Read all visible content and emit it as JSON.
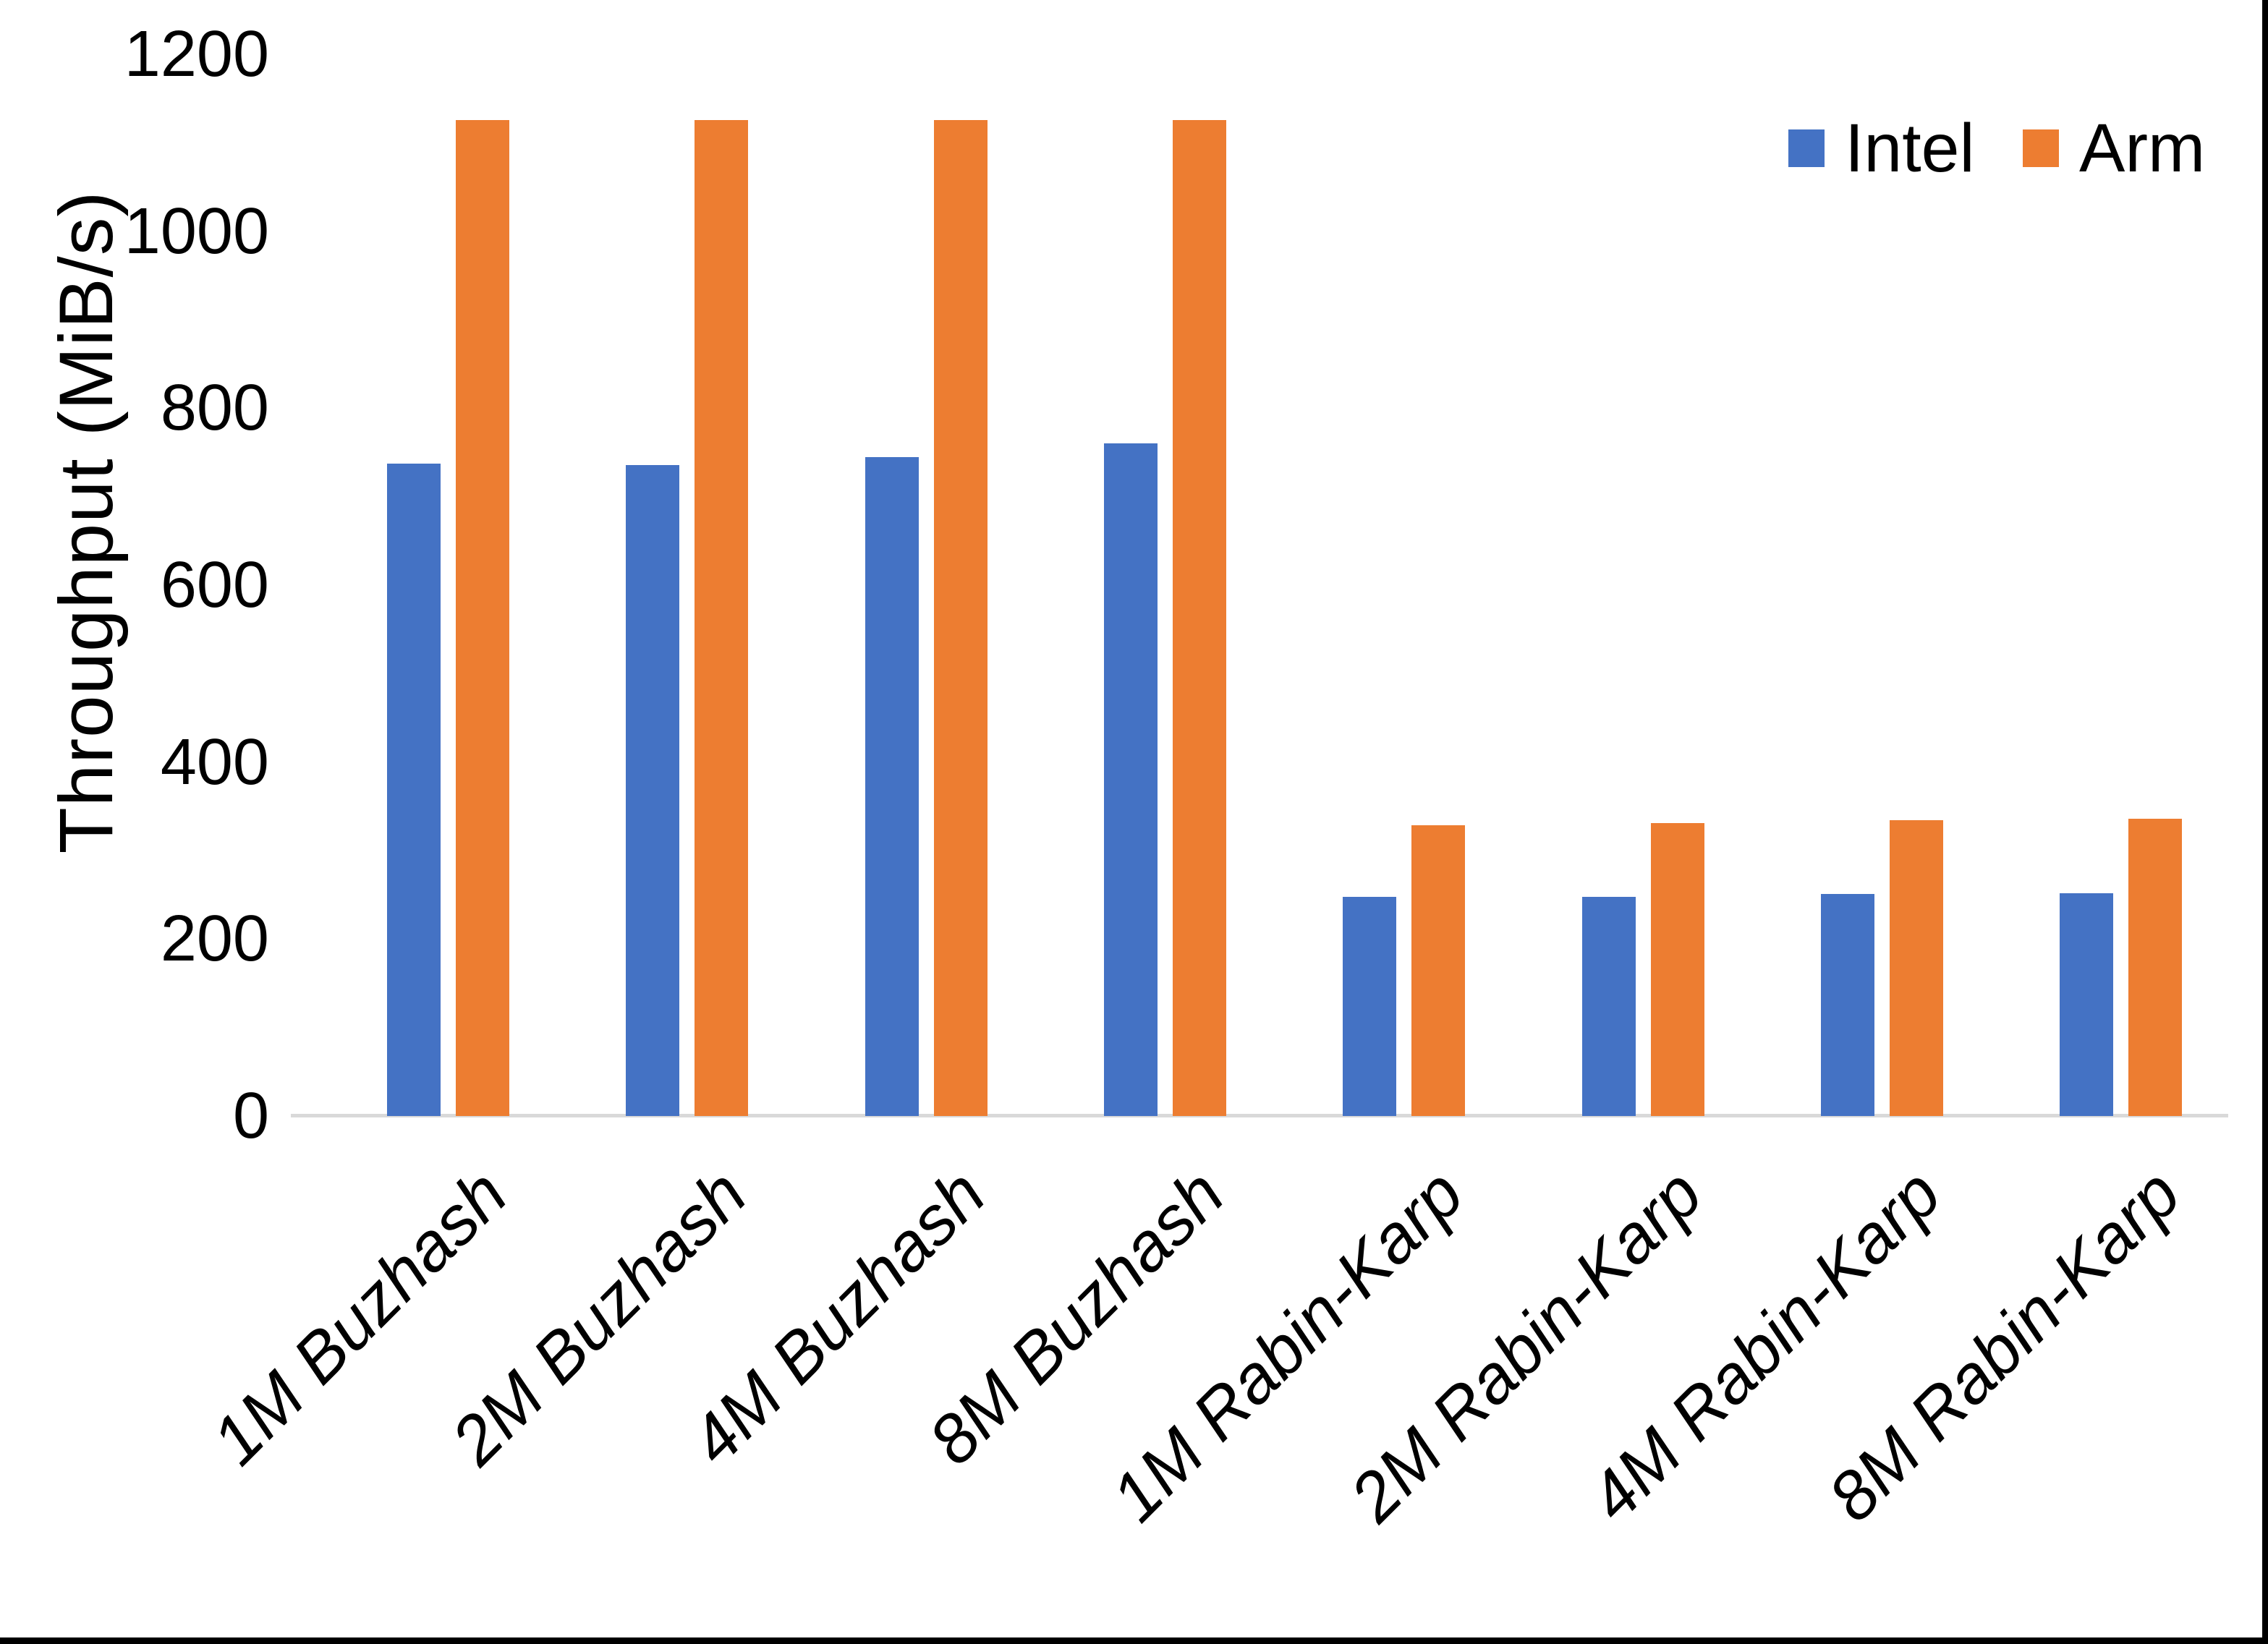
{
  "chart_data": {
    "type": "bar",
    "title": "",
    "xlabel": "",
    "ylabel": "Throughput (MiB/s)",
    "ylim": [
      0,
      1200
    ],
    "yticks": [
      0,
      200,
      400,
      600,
      800,
      1000,
      1200
    ],
    "grid": false,
    "legend_position": "top-right",
    "categories": [
      "1M Buzhash",
      "2M Buzhash",
      "4M Buzhash",
      "8M Buzhash",
      "1M Rabin-Karp",
      "2M Rabin-Karp",
      "4M Rabin-Karp",
      "8M Rabin-Karp"
    ],
    "series": [
      {
        "name": "Intel",
        "color": "#4472C4",
        "values": [
          737,
          736,
          745,
          760,
          248,
          248,
          251,
          252
        ]
      },
      {
        "name": "Arm",
        "color": "#ED7D31",
        "values": [
          1126,
          1126,
          1126,
          1126,
          329,
          331,
          334,
          336
        ]
      }
    ]
  },
  "axis": {
    "baseline_color": "#D9D9D9",
    "text_color": "#000000"
  },
  "frame": {
    "right_bar_color": "#000000",
    "bottom_bar_color": "#000000"
  }
}
